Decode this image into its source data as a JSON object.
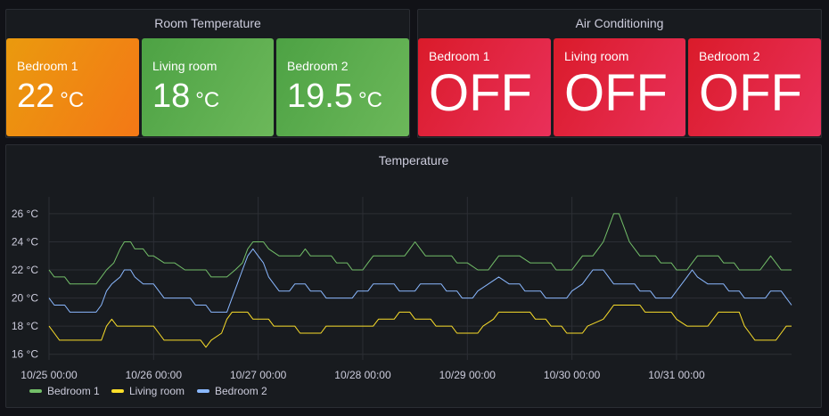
{
  "room_temperature": {
    "title": "Room Temperature",
    "stats": [
      {
        "name": "Bedroom 1",
        "value": "22",
        "unit": "°C",
        "color": "#f07a16"
      },
      {
        "name": "Living room",
        "value": "18",
        "unit": "°C",
        "color": "#5fad50"
      },
      {
        "name": "Bedroom 2",
        "value": "19.5",
        "unit": "°C",
        "color": "#5fad50"
      }
    ]
  },
  "air_conditioning": {
    "title": "Air Conditioning",
    "stats": [
      {
        "name": "Bedroom 1",
        "value": "OFF",
        "color": "#e0213f"
      },
      {
        "name": "Living room",
        "value": "OFF",
        "color": "#e0213f"
      },
      {
        "name": "Bedroom 2",
        "value": "OFF",
        "color": "#e0213f"
      }
    ]
  },
  "temperature_panel": {
    "title": "Temperature"
  },
  "chart_data": {
    "type": "line",
    "title": "Temperature",
    "x_tick_labels": [
      "10/25 00:00",
      "10/26 00:00",
      "10/27 00:00",
      "10/28 00:00",
      "10/29 00:00",
      "10/30 00:00",
      "10/31 00:00"
    ],
    "y_tick_labels": [
      "16 °C",
      "18 °C",
      "20 °C",
      "22 °C",
      "24 °C",
      "26 °C"
    ],
    "y_ticks": [
      16,
      18,
      20,
      22,
      24,
      26
    ],
    "xlim_days": [
      0,
      7.1
    ],
    "ylim": [
      15.6,
      27.2
    ],
    "grid": true,
    "legend_position": "bottom-left",
    "series": [
      {
        "name": "Bedroom 1",
        "color": "#73bf69",
        "points": [
          [
            0,
            22
          ],
          [
            0.05,
            21.5
          ],
          [
            0.15,
            21.5
          ],
          [
            0.2,
            21
          ],
          [
            0.45,
            21
          ],
          [
            0.5,
            21.5
          ],
          [
            0.55,
            22
          ],
          [
            0.62,
            22.5
          ],
          [
            0.68,
            23.5
          ],
          [
            0.72,
            24
          ],
          [
            0.78,
            24
          ],
          [
            0.82,
            23.5
          ],
          [
            0.9,
            23.5
          ],
          [
            0.95,
            23
          ],
          [
            1.0,
            23
          ],
          [
            1.1,
            22.5
          ],
          [
            1.2,
            22.5
          ],
          [
            1.3,
            22
          ],
          [
            1.5,
            22
          ],
          [
            1.55,
            21.5
          ],
          [
            1.7,
            21.5
          ],
          [
            1.78,
            22
          ],
          [
            1.85,
            22.5
          ],
          [
            1.9,
            23.5
          ],
          [
            1.95,
            24
          ],
          [
            2.05,
            24
          ],
          [
            2.1,
            23.5
          ],
          [
            2.2,
            23
          ],
          [
            2.4,
            23
          ],
          [
            2.45,
            23.5
          ],
          [
            2.5,
            23
          ],
          [
            2.7,
            23
          ],
          [
            2.75,
            22.5
          ],
          [
            2.85,
            22.5
          ],
          [
            2.9,
            22
          ],
          [
            3.0,
            22
          ],
          [
            3.05,
            22.5
          ],
          [
            3.1,
            23
          ],
          [
            3.4,
            23
          ],
          [
            3.45,
            23.5
          ],
          [
            3.5,
            24
          ],
          [
            3.55,
            23.5
          ],
          [
            3.6,
            23
          ],
          [
            3.85,
            23
          ],
          [
            3.9,
            22.5
          ],
          [
            4.0,
            22.5
          ],
          [
            4.1,
            22
          ],
          [
            4.2,
            22
          ],
          [
            4.25,
            22.5
          ],
          [
            4.3,
            23
          ],
          [
            4.5,
            23
          ],
          [
            4.6,
            22.5
          ],
          [
            4.8,
            22.5
          ],
          [
            4.85,
            22
          ],
          [
            5.0,
            22
          ],
          [
            5.05,
            22.5
          ],
          [
            5.1,
            23
          ],
          [
            5.2,
            23
          ],
          [
            5.25,
            23.5
          ],
          [
            5.3,
            24
          ],
          [
            5.35,
            25
          ],
          [
            5.4,
            26
          ],
          [
            5.45,
            26
          ],
          [
            5.5,
            25
          ],
          [
            5.55,
            24
          ],
          [
            5.6,
            23.5
          ],
          [
            5.65,
            23
          ],
          [
            5.8,
            23
          ],
          [
            5.85,
            22.5
          ],
          [
            5.95,
            22.5
          ],
          [
            6.0,
            22
          ],
          [
            6.1,
            22
          ],
          [
            6.15,
            22.5
          ],
          [
            6.2,
            23
          ],
          [
            6.4,
            23
          ],
          [
            6.45,
            22.5
          ],
          [
            6.55,
            22.5
          ],
          [
            6.6,
            22
          ],
          [
            6.8,
            22
          ],
          [
            6.85,
            22.5
          ],
          [
            6.9,
            23
          ],
          [
            6.95,
            22.5
          ],
          [
            7.0,
            22
          ],
          [
            7.1,
            22
          ]
        ]
      },
      {
        "name": "Living room",
        "color": "#fade2a",
        "points": [
          [
            0,
            18
          ],
          [
            0.05,
            17.5
          ],
          [
            0.1,
            17
          ],
          [
            0.5,
            17
          ],
          [
            0.55,
            18
          ],
          [
            0.6,
            18.5
          ],
          [
            0.65,
            18
          ],
          [
            1.0,
            18
          ],
          [
            1.05,
            17.5
          ],
          [
            1.1,
            17
          ],
          [
            1.45,
            17
          ],
          [
            1.5,
            16.5
          ],
          [
            1.55,
            17
          ],
          [
            1.65,
            17.5
          ],
          [
            1.7,
            18.5
          ],
          [
            1.75,
            19
          ],
          [
            1.9,
            19
          ],
          [
            1.95,
            18.5
          ],
          [
            2.1,
            18.5
          ],
          [
            2.15,
            18
          ],
          [
            2.35,
            18
          ],
          [
            2.4,
            17.5
          ],
          [
            2.6,
            17.5
          ],
          [
            2.65,
            18
          ],
          [
            3.1,
            18
          ],
          [
            3.15,
            18.5
          ],
          [
            3.3,
            18.5
          ],
          [
            3.35,
            19
          ],
          [
            3.45,
            19
          ],
          [
            3.5,
            18.5
          ],
          [
            3.65,
            18.5
          ],
          [
            3.7,
            18
          ],
          [
            3.85,
            18
          ],
          [
            3.9,
            17.5
          ],
          [
            4.1,
            17.5
          ],
          [
            4.15,
            18
          ],
          [
            4.25,
            18.5
          ],
          [
            4.3,
            19
          ],
          [
            4.6,
            19
          ],
          [
            4.65,
            18.5
          ],
          [
            4.75,
            18.5
          ],
          [
            4.8,
            18
          ],
          [
            4.9,
            18
          ],
          [
            4.95,
            17.5
          ],
          [
            5.1,
            17.5
          ],
          [
            5.15,
            18
          ],
          [
            5.3,
            18.5
          ],
          [
            5.35,
            19
          ],
          [
            5.4,
            19.5
          ],
          [
            5.65,
            19.5
          ],
          [
            5.7,
            19
          ],
          [
            5.95,
            19
          ],
          [
            6.0,
            18.5
          ],
          [
            6.1,
            18
          ],
          [
            6.3,
            18
          ],
          [
            6.35,
            18.5
          ],
          [
            6.4,
            19
          ],
          [
            6.6,
            19
          ],
          [
            6.65,
            18
          ],
          [
            6.7,
            17.5
          ],
          [
            6.75,
            17
          ],
          [
            6.95,
            17
          ],
          [
            7.0,
            17.5
          ],
          [
            7.05,
            18
          ],
          [
            7.1,
            18
          ]
        ]
      },
      {
        "name": "Bedroom 2",
        "color": "#8ab8ff",
        "points": [
          [
            0,
            20
          ],
          [
            0.05,
            19.5
          ],
          [
            0.15,
            19.5
          ],
          [
            0.2,
            19
          ],
          [
            0.45,
            19
          ],
          [
            0.5,
            19.5
          ],
          [
            0.55,
            20.5
          ],
          [
            0.6,
            21
          ],
          [
            0.68,
            21.5
          ],
          [
            0.72,
            22
          ],
          [
            0.78,
            22
          ],
          [
            0.82,
            21.5
          ],
          [
            0.9,
            21
          ],
          [
            1.0,
            21
          ],
          [
            1.05,
            20.5
          ],
          [
            1.1,
            20
          ],
          [
            1.35,
            20
          ],
          [
            1.4,
            19.5
          ],
          [
            1.5,
            19.5
          ],
          [
            1.55,
            19
          ],
          [
            1.7,
            19
          ],
          [
            1.75,
            20
          ],
          [
            1.8,
            21
          ],
          [
            1.85,
            22
          ],
          [
            1.9,
            23
          ],
          [
            1.95,
            23.5
          ],
          [
            2.0,
            23
          ],
          [
            2.05,
            22.5
          ],
          [
            2.1,
            21.5
          ],
          [
            2.15,
            21
          ],
          [
            2.2,
            20.5
          ],
          [
            2.3,
            20.5
          ],
          [
            2.35,
            21
          ],
          [
            2.45,
            21
          ],
          [
            2.5,
            20.5
          ],
          [
            2.6,
            20.5
          ],
          [
            2.65,
            20
          ],
          [
            2.9,
            20
          ],
          [
            2.95,
            20.5
          ],
          [
            3.05,
            20.5
          ],
          [
            3.1,
            21
          ],
          [
            3.3,
            21
          ],
          [
            3.35,
            20.5
          ],
          [
            3.5,
            20.5
          ],
          [
            3.55,
            21
          ],
          [
            3.75,
            21
          ],
          [
            3.8,
            20.5
          ],
          [
            3.9,
            20.5
          ],
          [
            3.95,
            20
          ],
          [
            4.05,
            20
          ],
          [
            4.1,
            20.5
          ],
          [
            4.2,
            21
          ],
          [
            4.3,
            21.5
          ],
          [
            4.4,
            21
          ],
          [
            4.5,
            21
          ],
          [
            4.55,
            20.5
          ],
          [
            4.7,
            20.5
          ],
          [
            4.75,
            20
          ],
          [
            4.95,
            20
          ],
          [
            5.0,
            20.5
          ],
          [
            5.1,
            21
          ],
          [
            5.15,
            21.5
          ],
          [
            5.2,
            22
          ],
          [
            5.3,
            22
          ],
          [
            5.35,
            21.5
          ],
          [
            5.4,
            21
          ],
          [
            5.6,
            21
          ],
          [
            5.65,
            20.5
          ],
          [
            5.75,
            20.5
          ],
          [
            5.8,
            20
          ],
          [
            5.95,
            20
          ],
          [
            6.0,
            20.5
          ],
          [
            6.1,
            21.5
          ],
          [
            6.15,
            22
          ],
          [
            6.2,
            21.5
          ],
          [
            6.3,
            21
          ],
          [
            6.45,
            21
          ],
          [
            6.5,
            20.5
          ],
          [
            6.6,
            20.5
          ],
          [
            6.65,
            20
          ],
          [
            6.85,
            20
          ],
          [
            6.9,
            20.5
          ],
          [
            7.0,
            20.5
          ],
          [
            7.05,
            20
          ],
          [
            7.1,
            19.5
          ]
        ]
      }
    ]
  }
}
